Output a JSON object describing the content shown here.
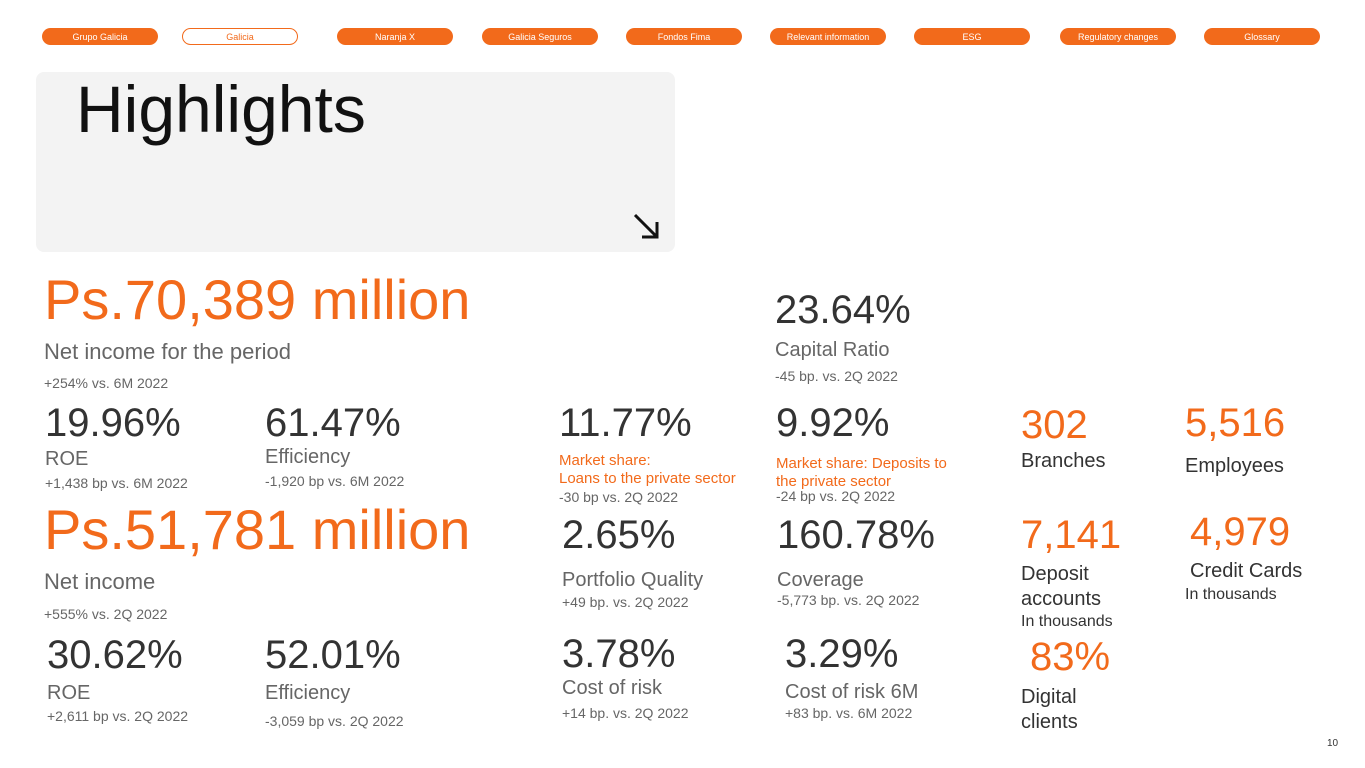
{
  "nav": {
    "items": [
      "Grupo Galicia",
      "Galicia",
      "Naranja X",
      "Galicia Seguros",
      "Fondos Fima",
      "Relevant information",
      "ESG",
      "Regulatory changes",
      "Glossary"
    ]
  },
  "header": {
    "title": "Highlights"
  },
  "metrics": [
    {
      "value": "Ps.70,389 million",
      "label": [
        "Net income for the period"
      ],
      "change": "+254% vs. 6M 2022"
    },
    {
      "value": "23.64%",
      "label": [
        "Capital Ratio"
      ],
      "change": "-45 bp. vs. 2Q 2022"
    },
    {
      "value": "19.96%",
      "label": [
        "ROE"
      ],
      "change": "+1,438 bp vs. 6M 2022"
    },
    {
      "value": "61.47%",
      "label": [
        "Efficiency"
      ],
      "change": "-1,920 bp vs. 6M 2022"
    },
    {
      "value": "11.77%",
      "label": [
        "Market share:",
        "Loans to the private sector"
      ],
      "change": "-30 bp vs. 2Q 2022"
    },
    {
      "value": "9.92%",
      "label": [
        "Market share: Deposits to",
        "the private sector"
      ],
      "change": "-24 bp vs. 2Q 2022"
    },
    {
      "value": "302",
      "label": [
        "Branches"
      ]
    },
    {
      "value": "5,516",
      "label": [
        "Employees"
      ]
    },
    {
      "value": "Ps.51,781 million",
      "label": [
        "Net income"
      ],
      "change": "+555% vs. 2Q 2022"
    },
    {
      "value": "2.65%",
      "label": [
        "Portfolio Quality"
      ],
      "change": "+49 bp. vs. 2Q 2022"
    },
    {
      "value": "160.78%",
      "label": [
        "Coverage"
      ],
      "change": "-5,773 bp. vs. 2Q 2022"
    },
    {
      "value": "7,141",
      "label": [
        "Deposit",
        "accounts"
      ],
      "note": "In thousands"
    },
    {
      "value": "4,979",
      "label": [
        "Credit Cards"
      ],
      "note": "In thousands"
    },
    {
      "value": "30.62%",
      "label": [
        "ROE"
      ],
      "change": "+2,611 bp vs. 2Q 2022"
    },
    {
      "value": "52.01%",
      "label": [
        "Efficiency"
      ],
      "change": "-3,059 bp vs. 2Q 2022"
    },
    {
      "value": "3.78%",
      "label": [
        "Cost of risk"
      ],
      "change": "+14 bp. vs. 2Q 2022"
    },
    {
      "value": "3.29%",
      "label": [
        "Cost of risk 6M"
      ],
      "change": "+83 bp. vs. 6M 2022"
    },
    {
      "value": "83%",
      "label": [
        "Digital",
        "clients"
      ]
    }
  ],
  "page_number": "10"
}
